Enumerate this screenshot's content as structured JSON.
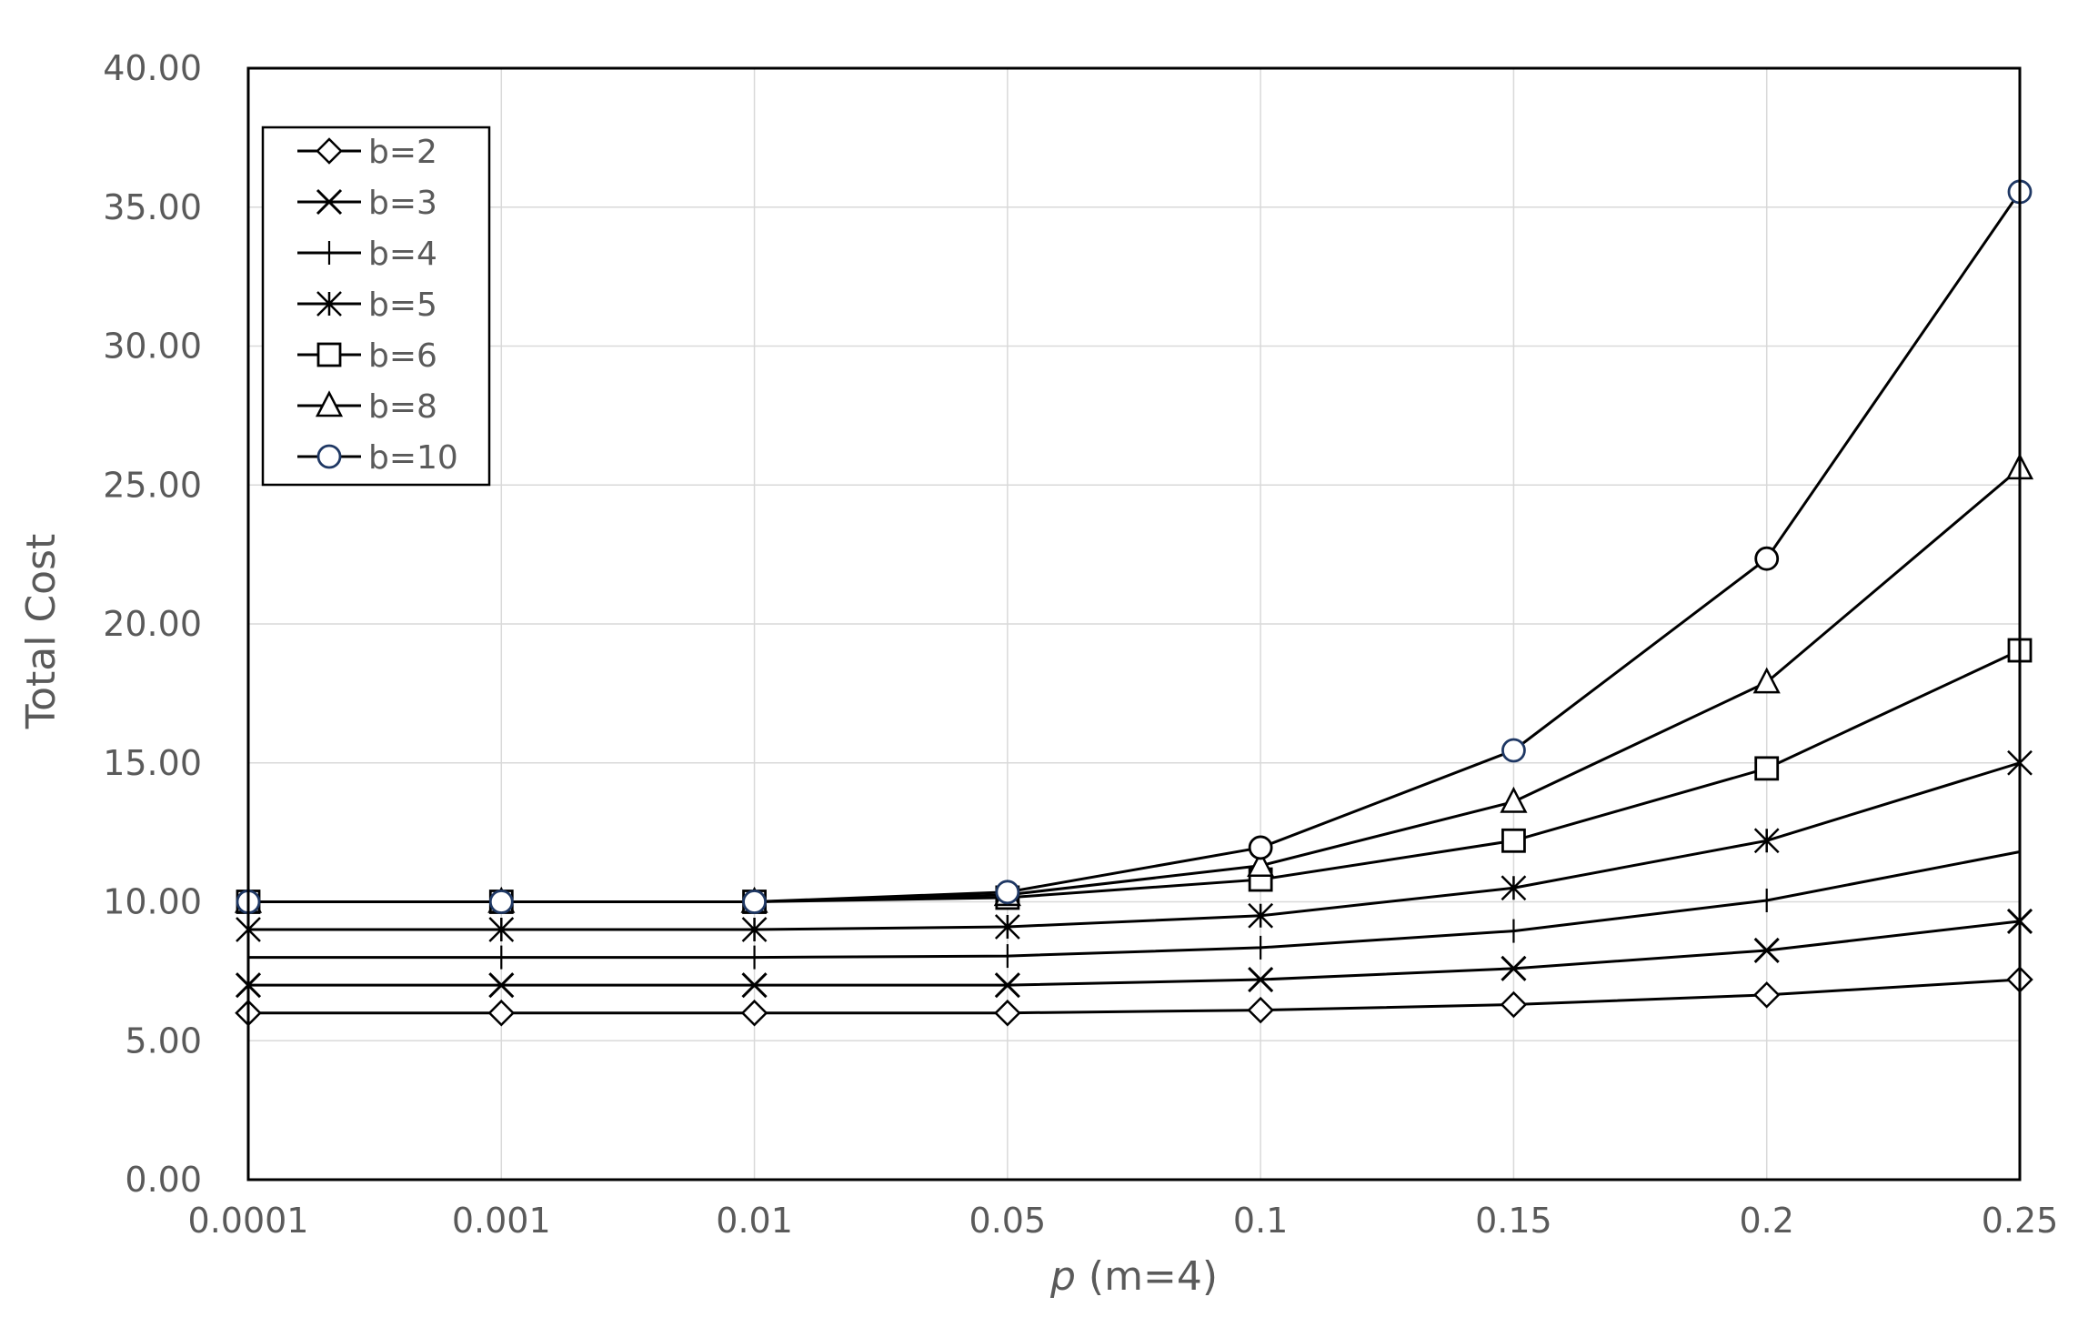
{
  "chart_data": {
    "type": "line",
    "title": "",
    "xlabel_italic": "p",
    "xlabel_rest": " (m=4)",
    "ylabel": "Total Cost",
    "categories": [
      "0.0001",
      "0.001",
      "0.01",
      "0.05",
      "0.1",
      "0.15",
      "0.2",
      "0.25"
    ],
    "ylim": [
      0,
      40
    ],
    "yticks": [
      "0.00",
      "5.00",
      "10.00",
      "15.00",
      "20.00",
      "25.00",
      "30.00",
      "35.00",
      "40.00"
    ],
    "grid": true,
    "legend_position": "top-left",
    "series": [
      {
        "name": "b=2",
        "marker": "diamond",
        "values": [
          6.0,
          6.0,
          6.0,
          6.0,
          6.1,
          6.3,
          6.65,
          7.2
        ]
      },
      {
        "name": "b=3",
        "marker": "x",
        "values": [
          7.0,
          7.0,
          7.0,
          7.0,
          7.2,
          7.6,
          8.25,
          9.3
        ]
      },
      {
        "name": "b=4",
        "marker": "plus",
        "values": [
          8.0,
          8.0,
          8.0,
          8.05,
          8.35,
          8.95,
          10.05,
          11.8
        ]
      },
      {
        "name": "b=5",
        "marker": "asterisk",
        "values": [
          9.0,
          9.0,
          9.0,
          9.1,
          9.5,
          10.5,
          12.2,
          15.0
        ]
      },
      {
        "name": "b=6",
        "marker": "square",
        "values": [
          10.0,
          10.0,
          10.0,
          10.15,
          10.8,
          12.2,
          14.8,
          19.05
        ]
      },
      {
        "name": "b=8",
        "marker": "triangle",
        "values": [
          10.0,
          10.0,
          10.0,
          10.25,
          11.3,
          13.6,
          17.9,
          25.6
        ]
      },
      {
        "name": "b=10",
        "marker": "circle",
        "values": [
          10.0,
          10.0,
          10.0,
          10.35,
          11.95,
          15.45,
          22.35,
          35.55
        ]
      }
    ],
    "colors": {
      "line": "#000000",
      "axis_text": "#5a5a5a",
      "grid": "#d9d9d9",
      "b10_marker_accent": "#1f3864"
    }
  }
}
